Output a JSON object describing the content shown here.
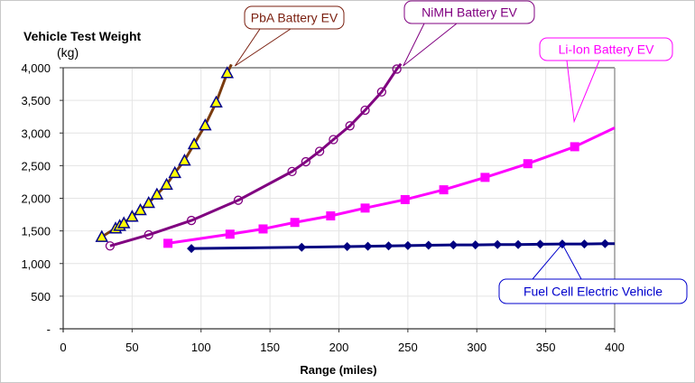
{
  "chart_data": {
    "type": "line",
    "title": "Vehicle Test Weight",
    "ylabel": "Vehicle Test Weight",
    "yunit": "(kg)",
    "xlabel": "Range (miles)",
    "xlim": [
      0,
      400
    ],
    "ylim": [
      0,
      4000
    ],
    "xticks": [
      0,
      50,
      100,
      150,
      200,
      250,
      300,
      350,
      400
    ],
    "xtick_labels": [
      "0",
      "50",
      "100",
      "150",
      "200",
      "250",
      "300",
      "350",
      "400"
    ],
    "yticks": [
      0,
      500,
      1000,
      1500,
      2000,
      2500,
      3000,
      3500,
      4000
    ],
    "ytick_labels": [
      "-",
      "500",
      "1,000",
      "1,500",
      "2,000",
      "2,500",
      "3,000",
      "3,500",
      "4,000"
    ],
    "grid": true,
    "legend": "callouts",
    "series": [
      {
        "name": "PbA Battery EV",
        "color": "#7a3b0f",
        "marker": "triangle",
        "marker_fill": "#ffff00",
        "marker_edge": "#00008b",
        "line_end": [
          122,
          4050
        ],
        "x": [
          28,
          38,
          41,
          44,
          50,
          56,
          62,
          68,
          75,
          81,
          88,
          95,
          103,
          111,
          119
        ],
        "y": [
          1410,
          1540,
          1580,
          1620,
          1720,
          1820,
          1930,
          2060,
          2210,
          2390,
          2580,
          2830,
          3120,
          3470,
          3920
        ]
      },
      {
        "name": "NiMH Battery EV",
        "color": "#800080",
        "marker": "circle",
        "marker_fill": "none",
        "marker_edge": "#800080",
        "line_end": [
          245,
          4060
        ],
        "x": [
          34,
          62,
          93,
          127,
          166,
          176,
          186,
          196,
          208,
          219,
          231,
          242
        ],
        "y": [
          1270,
          1440,
          1660,
          1970,
          2410,
          2560,
          2720,
          2900,
          3110,
          3350,
          3630,
          3980
        ]
      },
      {
        "name": "Li-Ion Battery EV",
        "color": "#ff00ff",
        "marker": "square",
        "marker_fill": "#ff00ff",
        "marker_edge": "#ff00ff",
        "line_end": [
          400,
          3080
        ],
        "x": [
          76,
          121,
          145,
          168,
          194,
          219,
          248,
          276,
          306,
          337,
          371
        ],
        "y": [
          1310,
          1450,
          1530,
          1630,
          1730,
          1850,
          1980,
          2130,
          2320,
          2530,
          2790
        ]
      },
      {
        "name": "Fuel Cell Electric Vehicle",
        "color": "#000080",
        "marker": "diamond",
        "marker_fill": "#000080",
        "marker_edge": "#000080",
        "line_end": [
          400,
          1305
        ],
        "x": [
          93,
          173,
          206,
          221,
          236,
          250,
          265,
          283,
          299,
          315,
          330,
          346,
          362,
          378,
          393
        ],
        "y": [
          1230,
          1250,
          1260,
          1265,
          1270,
          1275,
          1280,
          1285,
          1285,
          1290,
          1290,
          1295,
          1300,
          1300,
          1305
        ]
      }
    ],
    "annotations": [
      {
        "text": "PbA Battery EV",
        "series": "PbA Battery EV",
        "anchor_point": [
          122,
          4000
        ],
        "color": "#7a1f0f"
      },
      {
        "text": "NiMH Battery EV",
        "series": "NiMH Battery EV",
        "anchor_point": [
          244,
          4000
        ],
        "color": "#800080"
      },
      {
        "text": "Li-Ion Battery EV",
        "series": "Li-Ion Battery EV",
        "anchor_point": [
          368,
          3150
        ],
        "color": "#ff00ff"
      },
      {
        "text": "Fuel Cell Electric Vehicle",
        "series": "Fuel Cell Electric Vehicle",
        "anchor_point": [
          362,
          1300
        ],
        "color": "#0000cc"
      }
    ]
  }
}
